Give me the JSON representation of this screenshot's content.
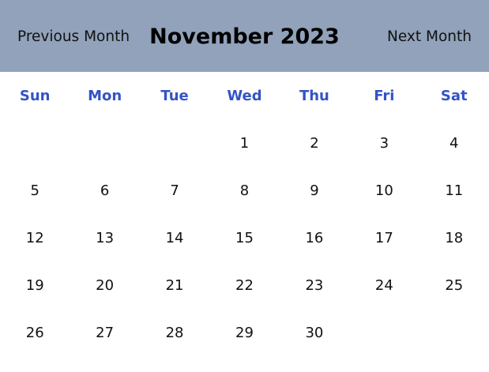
{
  "header": {
    "prev_label": "Previous Month",
    "title": "November 2023",
    "next_label": "Next Month"
  },
  "weekdays": [
    "Sun",
    "Mon",
    "Tue",
    "Wed",
    "Thu",
    "Fri",
    "Sat"
  ],
  "days": [
    "",
    "",
    "",
    "1",
    "2",
    "3",
    "4",
    "5",
    "6",
    "7",
    "8",
    "9",
    "10",
    "11",
    "12",
    "13",
    "14",
    "15",
    "16",
    "17",
    "18",
    "19",
    "20",
    "21",
    "22",
    "23",
    "24",
    "25",
    "26",
    "27",
    "28",
    "29",
    "30",
    "",
    ""
  ],
  "colors": {
    "header_bg": "#91a2ba",
    "weekday_text": "#3354c4",
    "day_text": "#111111"
  }
}
